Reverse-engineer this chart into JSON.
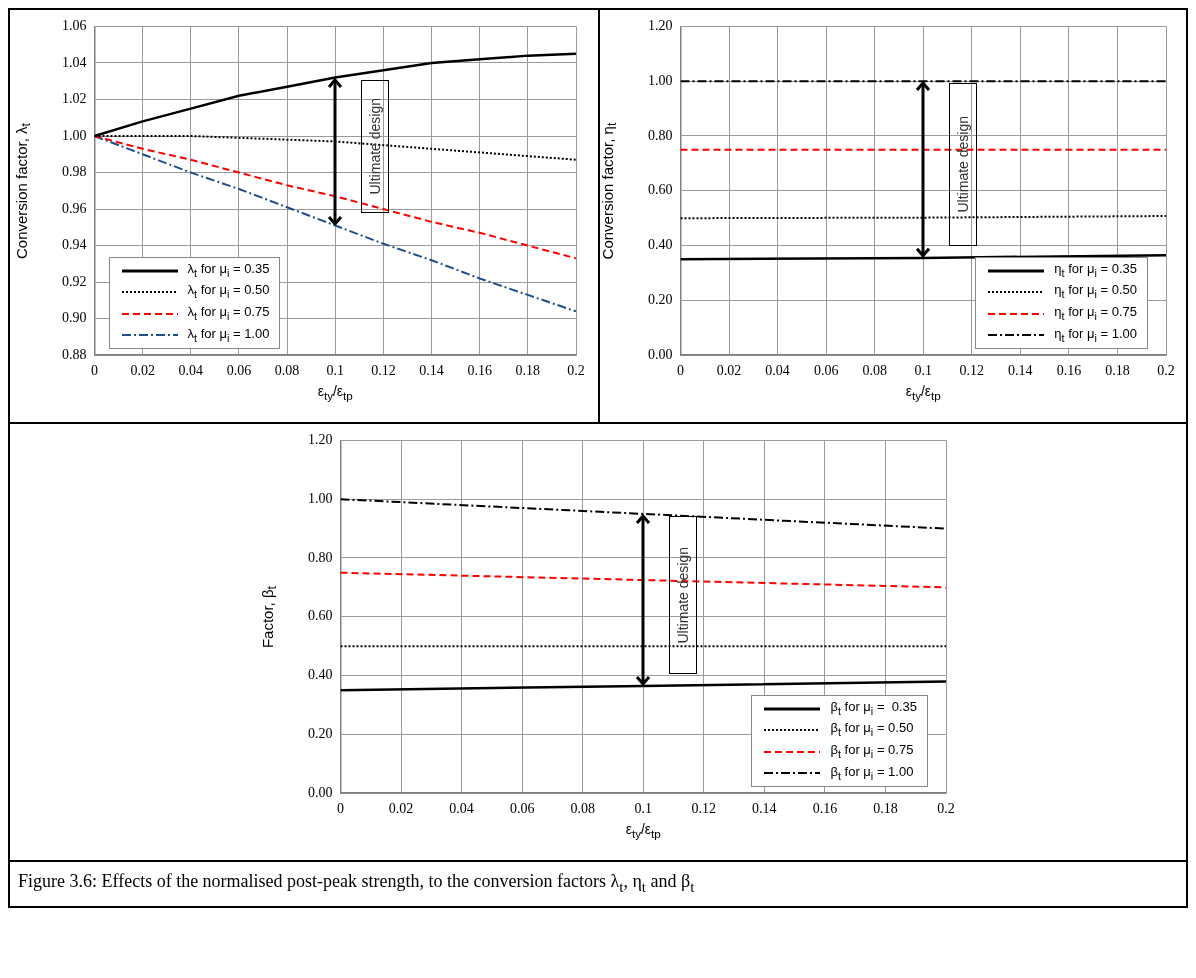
{
  "chart_data": [
    {
      "type": "line",
      "xlabel": "ε$_{ty}$/ε$_{tp}$",
      "ylabel": "Conversion factor, λ$_{t}$",
      "x": [
        0,
        0.02,
        0.04,
        0.06,
        0.08,
        0.1,
        0.12,
        0.14,
        0.16,
        0.18,
        0.2
      ],
      "xlim": [
        0,
        0.2
      ],
      "xticks": [
        0,
        0.02,
        0.04,
        0.06,
        0.08,
        0.1,
        0.12,
        0.14,
        0.16,
        0.18,
        0.2
      ],
      "ylim": [
        0.88,
        1.06
      ],
      "yticks": [
        {
          "value": 0.88,
          "label": "0.88"
        },
        {
          "value": 0.9,
          "label": "0.90"
        },
        {
          "value": 0.92,
          "label": "0.92"
        },
        {
          "value": 0.94,
          "label": "0.94"
        },
        {
          "value": 0.96,
          "label": "0.96"
        },
        {
          "value": 0.98,
          "label": "0.98"
        },
        {
          "value": 1.0,
          "label": "1.00"
        },
        {
          "value": 1.02,
          "label": "1.02"
        },
        {
          "value": 1.04,
          "label": "1.04"
        },
        {
          "value": 1.06,
          "label": "1.06"
        }
      ],
      "grid": true,
      "legend": "bottom left",
      "marker": "none",
      "annotations": [
        "Ultimate design"
      ],
      "series": [
        {
          "name": "λ$_{t}$ for μ$_{i}$ = 0.35",
          "color": "#000000",
          "line_style": "solid",
          "values": [
            1.0,
            1.008,
            1.015,
            1.022,
            1.027,
            1.032,
            1.036,
            1.04,
            1.042,
            1.044,
            1.045
          ]
        },
        {
          "name": "λ$_{t}$ for μ$_{i}$ = 0.50",
          "color": "#000000",
          "line_style": "dotted",
          "values": [
            1.0,
            1.0,
            1.0,
            0.999,
            0.998,
            0.997,
            0.995,
            0.993,
            0.991,
            0.989,
            0.987
          ]
        },
        {
          "name": "λ$_{t}$ for μ$_{i}$ = 0.75",
          "color": "#ff0000",
          "line_style": "dashed",
          "values": [
            1.0,
            0.993,
            0.987,
            0.98,
            0.973,
            0.967,
            0.96,
            0.953,
            0.947,
            0.94,
            0.933
          ]
        },
        {
          "name": "λ$_{t}$ for μ$_{i}$ = 1.00",
          "color": "#1f4e8c",
          "line_style": "dashdot",
          "values": [
            1.0,
            0.99,
            0.98,
            0.971,
            0.961,
            0.951,
            0.941,
            0.932,
            0.922,
            0.913,
            0.904
          ]
        }
      ]
    },
    {
      "type": "line",
      "xlabel": "ε$_{ty}$/ε$_{tp}$",
      "ylabel": "Conversion factor, η$_{t}$",
      "x": [
        0,
        0.1,
        0.2
      ],
      "xlim": [
        0,
        0.2
      ],
      "xticks": [
        0,
        0.02,
        0.04,
        0.06,
        0.08,
        0.1,
        0.12,
        0.14,
        0.16,
        0.18,
        0.2
      ],
      "ylim": [
        0,
        1.2
      ],
      "yticks": [
        {
          "value": 0,
          "label": "0.00"
        },
        {
          "value": 0.2,
          "label": "0.20"
        },
        {
          "value": 0.4,
          "label": "0.40"
        },
        {
          "value": 0.6,
          "label": "0.60"
        },
        {
          "value": 0.8,
          "label": "0.80"
        },
        {
          "value": 1.0,
          "label": "1.00"
        },
        {
          "value": 1.2,
          "label": "1.20"
        }
      ],
      "grid": true,
      "legend": "bottom right",
      "marker": "none",
      "annotations": [
        "Ultimate design"
      ],
      "series": [
        {
          "name": "η$_{t}$ for μ$_{i}$ = 0.35",
          "color": "#000000",
          "line_style": "solid",
          "values": [
            0.35,
            0.355,
            0.365
          ]
        },
        {
          "name": "η$_{t}$ for μ$_{i}$ = 0.50",
          "color": "#000000",
          "line_style": "dotted",
          "values": [
            0.5,
            0.502,
            0.508
          ]
        },
        {
          "name": "η$_{t}$ for μ$_{i}$ = 0.75",
          "color": "#ff0000",
          "line_style": "dashed",
          "values": [
            0.75,
            0.75,
            0.75
          ]
        },
        {
          "name": "η$_{t}$ for μ$_{i}$ = 1.00",
          "color": "#000000",
          "line_style": "dashdot",
          "values": [
            1.0,
            1.0,
            1.0
          ]
        }
      ]
    },
    {
      "type": "line",
      "xlabel": "ε$_{ty}$/ε$_{tp}$",
      "ylabel": "Factor, β$_{t}$",
      "x": [
        0,
        0.1,
        0.2
      ],
      "xlim": [
        0,
        0.2
      ],
      "xticks": [
        0,
        0.02,
        0.04,
        0.06,
        0.08,
        0.1,
        0.12,
        0.14,
        0.16,
        0.18,
        0.2
      ],
      "ylim": [
        0,
        1.2
      ],
      "yticks": [
        {
          "value": 0,
          "label": "0.00"
        },
        {
          "value": 0.2,
          "label": "0.20"
        },
        {
          "value": 0.4,
          "label": "0.40"
        },
        {
          "value": 0.6,
          "label": "0.60"
        },
        {
          "value": 0.8,
          "label": "0.80"
        },
        {
          "value": 1.0,
          "label": "1.00"
        },
        {
          "value": 1.2,
          "label": "1.20"
        }
      ],
      "grid": true,
      "legend": "bottom right",
      "marker": "none",
      "annotations": [
        "Ultimate design",
        "Figure 3.6: Effects of the normalised post-peak strength, to the conversion factors λ$_{t}$, η$_{t}$ and β$_{t}$"
      ],
      "series": [
        {
          "name": "β$_{t}$ for μ$_{i}$ =  0.35",
          "color": "#000000",
          "line_style": "solid",
          "values": [
            0.35,
            0.365,
            0.38
          ]
        },
        {
          "name": "β$_{t}$ for μ$_{i}$ = 0.50",
          "color": "#000000",
          "line_style": "dotted",
          "values": [
            0.5,
            0.5,
            0.5
          ]
        },
        {
          "name": "β$_{t}$ for μ$_{i}$ = 0.75",
          "color": "#ff0000",
          "line_style": "dashed",
          "values": [
            0.75,
            0.725,
            0.7
          ]
        },
        {
          "name": "β$_{t}$ for μ$_{i}$ = 1.00",
          "color": "#000000",
          "line_style": "dashdot",
          "values": [
            1.0,
            0.95,
            0.9
          ]
        }
      ]
    }
  ]
}
